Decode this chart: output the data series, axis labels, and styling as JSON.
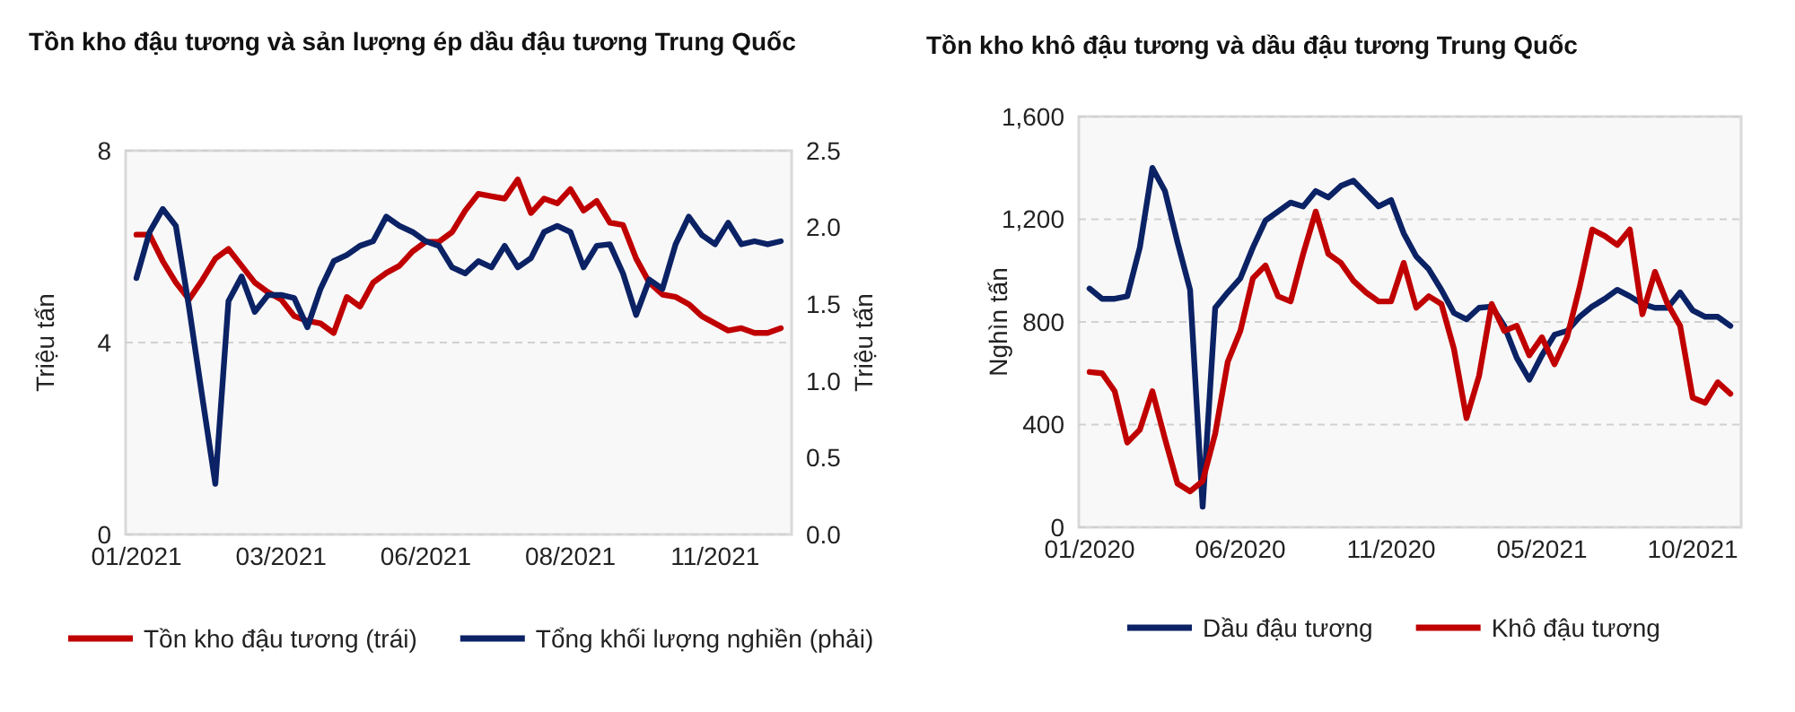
{
  "chart_data": [
    {
      "type": "line",
      "title": "Tồn kho đậu tương và sản lượng ép dầu đậu tương Trung Quốc",
      "ylabel": "Triệu tấn",
      "y2label": "Triệu tấn",
      "categories": [
        "01/2021",
        null,
        null,
        null,
        null,
        null,
        null,
        null,
        null,
        null,
        null,
        "03/2021",
        null,
        null,
        null,
        null,
        null,
        null,
        null,
        null,
        null,
        null,
        "06/2021",
        null,
        null,
        null,
        null,
        null,
        null,
        null,
        null,
        null,
        null,
        "08/2021",
        null,
        null,
        null,
        null,
        null,
        null,
        null,
        null,
        null,
        null,
        "11/2021",
        null,
        null,
        null,
        null,
        null
      ],
      "series": [
        {
          "name": "Tồn kho đậu tương (trái)",
          "color": "#c00000",
          "values": [
            6.25,
            6.25,
            5.7,
            5.25,
            4.9,
            5.3,
            5.75,
            5.95,
            5.6,
            5.25,
            5.05,
            4.9,
            4.55,
            4.45,
            4.4,
            4.2,
            4.95,
            4.75,
            5.25,
            5.45,
            5.6,
            5.9,
            6.1,
            6.1,
            6.3,
            6.75,
            7.1,
            7.05,
            7.0,
            7.4,
            6.7,
            7.0,
            6.9,
            7.2,
            6.75,
            6.95,
            6.5,
            6.45,
            5.75,
            5.25,
            5.0,
            4.95,
            4.8,
            4.55,
            4.4,
            4.25,
            4.3,
            4.2,
            4.2,
            4.3
          ]
        },
        {
          "name": "Tổng khối lượng nghiền (phải)",
          "color": "#0b2265",
          "axis": "y2",
          "values": [
            1.67,
            1.97,
            2.12,
            2.01,
            1.48,
            0.9,
            0.33,
            1.52,
            1.68,
            1.45,
            1.56,
            1.56,
            1.54,
            1.35,
            1.6,
            1.78,
            1.82,
            1.88,
            1.91,
            2.07,
            2.01,
            1.97,
            1.91,
            1.88,
            1.74,
            1.7,
            1.78,
            1.74,
            1.88,
            1.74,
            1.8,
            1.97,
            2.01,
            1.97,
            1.74,
            1.88,
            1.89,
            1.7,
            1.43,
            1.66,
            1.6,
            1.89,
            2.07,
            1.95,
            1.89,
            2.03,
            1.89,
            1.91,
            1.89,
            1.91
          ]
        }
      ],
      "ylim": [
        0,
        8
      ],
      "yticks": [
        0,
        4,
        8
      ],
      "y2lim": [
        0,
        2.5
      ],
      "y2ticks": [
        {
          "value": 0,
          "label": "0.0"
        },
        0.5,
        {
          "value": 1,
          "label": "1.0"
        },
        1.5,
        {
          "value": 2,
          "label": "2.0"
        },
        2.5
      ],
      "grid": "y",
      "legend": "bottom",
      "marker": "none",
      "line_style": "solid"
    },
    {
      "type": "line",
      "title": "Tồn kho khô đậu tương và dầu đậu tương Trung Quốc",
      "ylabel": "Nghìn tấn",
      "categories": [
        "01/2020",
        null,
        null,
        null,
        null,
        null,
        null,
        null,
        null,
        null,
        null,
        null,
        "06/2020",
        null,
        null,
        null,
        null,
        null,
        null,
        null,
        null,
        null,
        null,
        null,
        "11/2020",
        null,
        null,
        null,
        null,
        null,
        null,
        null,
        null,
        null,
        null,
        null,
        "05/2021",
        null,
        null,
        null,
        null,
        null,
        null,
        null,
        null,
        null,
        null,
        null,
        "10/2021",
        null,
        null,
        null
      ],
      "series": [
        {
          "name": "Dầu đậu tương",
          "color": "#0b2265",
          "values": [
            930,
            890,
            890,
            900,
            1090,
            1400,
            1310,
            1110,
            925,
            80,
            855,
            915,
            970,
            1090,
            1195,
            1230,
            1265,
            1250,
            1310,
            1285,
            1330,
            1350,
            1300,
            1250,
            1275,
            1145,
            1055,
            1005,
            925,
            835,
            810,
            855,
            860,
            785,
            660,
            575,
            670,
            750,
            765,
            820,
            860,
            890,
            925,
            900,
            870,
            855,
            855,
            915,
            845,
            820,
            820,
            785
          ]
        },
        {
          "name": "Khô đậu tương",
          "color": "#c00000",
          "values": [
            605,
            600,
            530,
            330,
            380,
            530,
            345,
            170,
            140,
            180,
            365,
            645,
            765,
            970,
            1020,
            900,
            880,
            1065,
            1230,
            1065,
            1030,
            960,
            915,
            880,
            880,
            1030,
            855,
            900,
            870,
            695,
            425,
            590,
            870,
            765,
            785,
            670,
            740,
            635,
            740,
            935,
            1160,
            1135,
            1100,
            1160,
            830,
            995,
            870,
            785,
            505,
            485,
            565,
            520
          ]
        }
      ],
      "ylim": [
        0,
        1600
      ],
      "yticks": [
        0,
        400,
        800,
        {
          "value": 1200,
          "label": "1,200"
        },
        {
          "value": 1600,
          "label": "1,600"
        }
      ],
      "grid": "y",
      "legend": "bottom",
      "marker": "none",
      "line_style": "solid"
    }
  ]
}
